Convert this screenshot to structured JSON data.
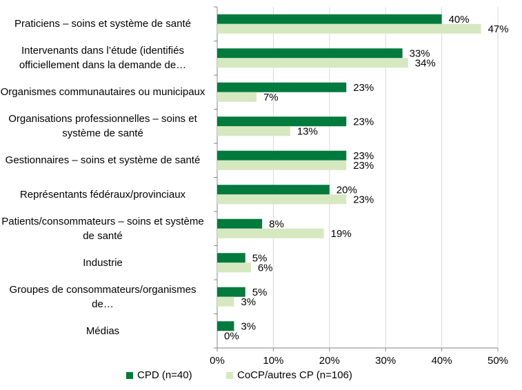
{
  "chart_data": {
    "type": "bar",
    "orientation": "horizontal",
    "categories": [
      "Praticiens – soins et système de santé",
      "Intervenants dans l’étude (identifiés officiellement dans la demande de…",
      "Organismes communautaires ou municipaux",
      "Organisations professionnelles – soins et système de santé",
      "Gestionnaires – soins et système de santé",
      "Représentants fédéraux/provinciaux",
      "Patients/consommateurs – soins et système de santé",
      "Industrie",
      "Groupes de consommateurs/organismes de…",
      "Médias"
    ],
    "series": [
      {
        "name": "CPD (n=40)",
        "color": "#007a3d",
        "values": [
          40,
          33,
          23,
          23,
          23,
          20,
          8,
          5,
          5,
          3
        ],
        "labels": [
          "40%",
          "33%",
          "23%",
          "23%",
          "23%",
          "20%",
          "8%",
          "5%",
          "5%",
          "3%"
        ]
      },
      {
        "name": "CoCP/autres CP (n=106)",
        "color": "#d6e8c0",
        "values": [
          47,
          34,
          7,
          13,
          23,
          23,
          19,
          6,
          3,
          0
        ],
        "labels": [
          "47%",
          "34%",
          "7%",
          "13%",
          "23%",
          "23%",
          "19%",
          "6%",
          "3%",
          "0%"
        ]
      }
    ],
    "xlim": [
      0,
      50
    ],
    "xticks": [
      "0%",
      "10%",
      "20%",
      "30%",
      "40%",
      "50%"
    ],
    "grid": true,
    "legend_position": "bottom"
  }
}
